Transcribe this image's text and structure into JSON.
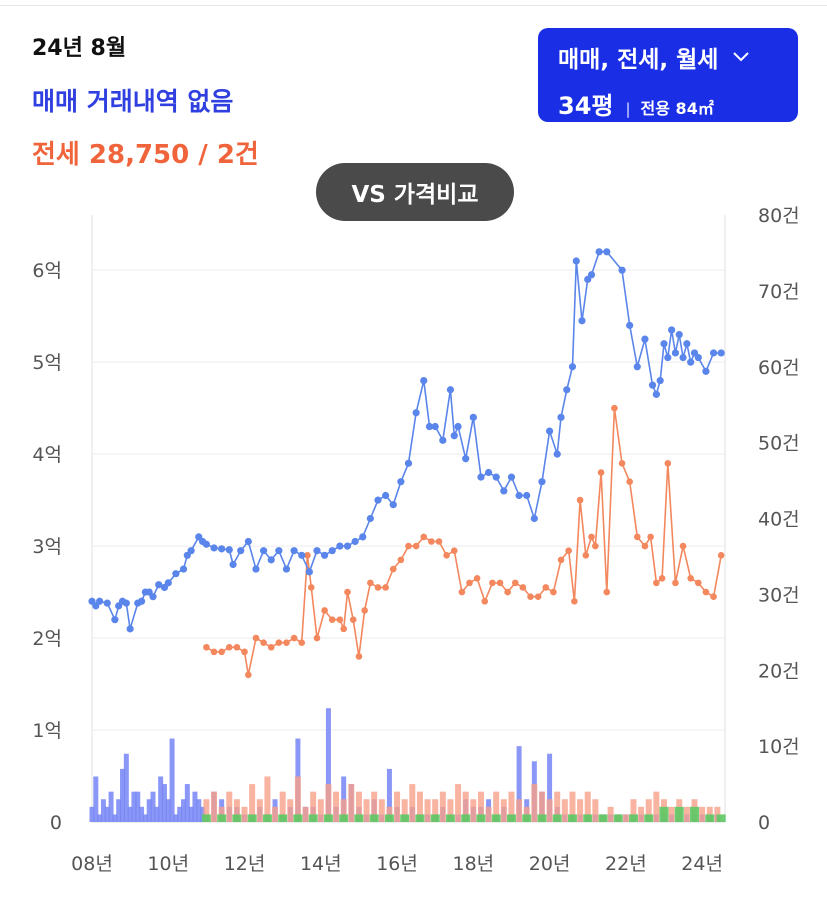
{
  "header": {
    "period": "24년 8월",
    "sale_status": "매매 거래내역 없음",
    "jeonse_summary": "전세 28,750 / 2건"
  },
  "filter": {
    "deal_types": "매매, 전세, 월세",
    "chevron_icon": "chevron-down-icon",
    "pyeong": "34평",
    "separator": "|",
    "exclusive_area": "전용 84㎡"
  },
  "vs_button": {
    "label": "VS 가격비교"
  },
  "colors": {
    "sale": "#5a85ea",
    "jeonse": "#f3875e",
    "sale_volume": "#7585f4",
    "jeonse_volume": "#f7a08a",
    "wolse_volume": "#5dc864",
    "accent": "#1a2ee6"
  },
  "chart_data": {
    "type": "line",
    "x_ticks": [
      "08년",
      "10년",
      "12년",
      "14년",
      "16년",
      "18년",
      "20년",
      "22년",
      "24년"
    ],
    "xlim": [
      2008,
      2024.6
    ],
    "y_left_ticks": [
      "0",
      "1억",
      "2억",
      "3억",
      "4억",
      "5억",
      "6억"
    ],
    "ylim_left": [
      0,
      6.6
    ],
    "y_right_ticks": [
      "0",
      "10건",
      "20건",
      "30건",
      "40건",
      "50건",
      "60건",
      "70건",
      "80건"
    ],
    "ylim_right": [
      0,
      80
    ],
    "grid": true,
    "series": [
      {
        "key": "sale",
        "type": "line",
        "axis": "left",
        "x": [
          2008.0,
          2008.1,
          2008.2,
          2008.4,
          2008.6,
          2008.7,
          2008.8,
          2008.9,
          2009.0,
          2009.2,
          2009.3,
          2009.4,
          2009.5,
          2009.6,
          2009.75,
          2009.9,
          2010.0,
          2010.2,
          2010.4,
          2010.5,
          2010.6,
          2010.8,
          2010.9,
          2011.0,
          2011.2,
          2011.4,
          2011.6,
          2011.7,
          2011.9,
          2012.1,
          2012.3,
          2012.5,
          2012.7,
          2012.9,
          2013.1,
          2013.3,
          2013.5,
          2013.7,
          2013.9,
          2014.1,
          2014.3,
          2014.5,
          2014.7,
          2014.9,
          2015.1,
          2015.3,
          2015.5,
          2015.7,
          2015.9,
          2016.1,
          2016.3,
          2016.5,
          2016.7,
          2016.85,
          2017.0,
          2017.2,
          2017.4,
          2017.5,
          2017.6,
          2017.8,
          2018.0,
          2018.2,
          2018.4,
          2018.6,
          2018.8,
          2019.0,
          2019.2,
          2019.4,
          2019.6,
          2019.8,
          2020.0,
          2020.2,
          2020.3,
          2020.45,
          2020.6,
          2020.7,
          2020.85,
          2021.0,
          2021.1,
          2021.3,
          2021.5,
          2021.9,
          2022.1,
          2022.3,
          2022.5,
          2022.7,
          2022.8,
          2022.9,
          2023.0,
          2023.1,
          2023.2,
          2023.3,
          2023.4,
          2023.5,
          2023.6,
          2023.7,
          2023.8,
          2023.9,
          2024.1,
          2024.3,
          2024.5
        ],
        "y": [
          2.4,
          2.35,
          2.4,
          2.38,
          2.2,
          2.35,
          2.4,
          2.38,
          2.1,
          2.38,
          2.4,
          2.5,
          2.5,
          2.45,
          2.58,
          2.55,
          2.6,
          2.7,
          2.75,
          2.9,
          2.95,
          3.1,
          3.05,
          3.02,
          2.98,
          2.97,
          2.96,
          2.8,
          2.95,
          3.05,
          2.75,
          2.95,
          2.85,
          2.95,
          2.75,
          2.95,
          2.9,
          2.72,
          2.95,
          2.9,
          2.95,
          3.0,
          3.0,
          3.05,
          3.1,
          3.3,
          3.5,
          3.55,
          3.45,
          3.7,
          3.9,
          4.45,
          4.8,
          4.3,
          4.3,
          4.15,
          4.7,
          4.2,
          4.3,
          3.95,
          4.4,
          3.75,
          3.8,
          3.75,
          3.6,
          3.75,
          3.55,
          3.55,
          3.3,
          3.7,
          4.25,
          4.0,
          4.4,
          4.7,
          4.95,
          6.1,
          5.45,
          5.9,
          5.95,
          6.2,
          6.2,
          6.0,
          5.4,
          4.95,
          5.25,
          4.75,
          4.65,
          4.8,
          5.2,
          5.05,
          5.35,
          5.1,
          5.3,
          5.05,
          5.2,
          5.0,
          5.1,
          5.05,
          4.9,
          5.1,
          5.1
        ]
      },
      {
        "key": "jeonse",
        "type": "line",
        "axis": "left",
        "x": [
          2011.0,
          2011.2,
          2011.4,
          2011.6,
          2011.8,
          2012.0,
          2012.1,
          2012.3,
          2012.5,
          2012.7,
          2012.9,
          2013.1,
          2013.3,
          2013.5,
          2013.65,
          2013.75,
          2013.9,
          2014.1,
          2014.3,
          2014.5,
          2014.6,
          2014.7,
          2014.85,
          2015.0,
          2015.15,
          2015.3,
          2015.5,
          2015.7,
          2015.9,
          2016.1,
          2016.3,
          2016.5,
          2016.7,
          2016.9,
          2017.1,
          2017.3,
          2017.5,
          2017.7,
          2017.9,
          2018.1,
          2018.3,
          2018.5,
          2018.7,
          2018.9,
          2019.1,
          2019.3,
          2019.5,
          2019.7,
          2019.9,
          2020.1,
          2020.3,
          2020.5,
          2020.65,
          2020.8,
          2020.95,
          2021.1,
          2021.2,
          2021.35,
          2021.5,
          2021.7,
          2021.9,
          2022.1,
          2022.3,
          2022.5,
          2022.65,
          2022.8,
          2022.95,
          2023.1,
          2023.3,
          2023.5,
          2023.7,
          2023.9,
          2024.1,
          2024.3,
          2024.5
        ],
        "y": [
          1.9,
          1.85,
          1.85,
          1.9,
          1.9,
          1.85,
          1.6,
          2.0,
          1.95,
          1.9,
          1.95,
          1.95,
          2.0,
          1.95,
          2.9,
          2.55,
          2.0,
          2.3,
          2.2,
          2.2,
          2.1,
          2.5,
          2.2,
          1.8,
          2.3,
          2.6,
          2.55,
          2.55,
          2.75,
          2.85,
          3.0,
          3.0,
          3.1,
          3.05,
          3.05,
          2.9,
          2.95,
          2.5,
          2.6,
          2.65,
          2.4,
          2.6,
          2.6,
          2.5,
          2.6,
          2.55,
          2.45,
          2.45,
          2.55,
          2.5,
          2.85,
          2.95,
          2.4,
          3.5,
          2.9,
          3.1,
          3.0,
          3.8,
          2.5,
          4.5,
          3.9,
          3.7,
          3.1,
          3.0,
          3.1,
          2.6,
          2.65,
          3.9,
          2.6,
          3.0,
          2.65,
          2.6,
          2.5,
          2.45,
          2.9
        ]
      },
      {
        "key": "sale_volume",
        "type": "bar",
        "axis": "right",
        "x": [
          2008.0,
          2008.1,
          2008.2,
          2008.3,
          2008.4,
          2008.5,
          2008.6,
          2008.7,
          2008.8,
          2008.9,
          2009.0,
          2009.1,
          2009.2,
          2009.3,
          2009.4,
          2009.5,
          2009.6,
          2009.7,
          2009.8,
          2009.9,
          2010.0,
          2010.1,
          2010.2,
          2010.3,
          2010.4,
          2010.5,
          2010.6,
          2010.7,
          2010.8,
          2010.9,
          2011.0,
          2011.2,
          2011.4,
          2011.6,
          2011.8,
          2012.0,
          2012.2,
          2012.4,
          2012.6,
          2012.8,
          2013.0,
          2013.2,
          2013.4,
          2013.6,
          2013.8,
          2014.0,
          2014.2,
          2014.4,
          2014.6,
          2014.8,
          2015.0,
          2015.2,
          2015.4,
          2015.6,
          2015.8,
          2016.0,
          2016.2,
          2016.4,
          2016.6,
          2016.8,
          2017.0,
          2017.2,
          2017.4,
          2017.6,
          2017.8,
          2018.0,
          2018.2,
          2018.4,
          2018.6,
          2018.8,
          2019.0,
          2019.2,
          2019.4,
          2019.6,
          2019.8,
          2020.0,
          2020.2,
          2020.4,
          2020.6,
          2020.8,
          2021.0,
          2021.2,
          2021.4,
          2021.6,
          2021.8,
          2022.0,
          2022.2,
          2022.4,
          2022.6,
          2022.8,
          2023.0,
          2023.2,
          2023.4,
          2023.6,
          2023.8,
          2024.0,
          2024.2,
          2024.4
        ],
        "values": [
          2,
          6,
          1,
          3,
          2,
          4,
          1,
          3,
          7,
          9,
          2,
          4,
          4,
          2,
          1,
          3,
          4,
          2,
          6,
          5,
          3,
          11,
          1,
          2,
          3,
          5,
          2,
          4,
          3,
          2,
          1,
          4,
          3,
          2,
          2,
          1,
          1,
          2,
          1,
          3,
          1,
          2,
          11,
          2,
          2,
          1,
          15,
          2,
          6,
          5,
          2,
          1,
          3,
          1,
          7,
          2,
          1,
          2,
          1,
          1,
          1,
          2,
          1,
          1,
          3,
          2,
          2,
          3,
          1,
          2,
          1,
          10,
          3,
          8,
          4,
          9,
          2,
          1,
          1,
          1,
          1,
          1,
          1,
          1,
          1,
          1,
          1,
          1,
          1,
          1,
          1,
          1,
          1,
          1,
          1,
          1,
          1,
          1
        ]
      },
      {
        "key": "jeonse_volume",
        "type": "bar",
        "axis": "right",
        "x": [
          2011.0,
          2011.2,
          2011.4,
          2011.6,
          2011.8,
          2012.0,
          2012.2,
          2012.4,
          2012.6,
          2012.8,
          2013.0,
          2013.2,
          2013.4,
          2013.6,
          2013.8,
          2014.0,
          2014.2,
          2014.4,
          2014.6,
          2014.8,
          2015.0,
          2015.2,
          2015.4,
          2015.6,
          2015.8,
          2016.0,
          2016.2,
          2016.4,
          2016.6,
          2016.8,
          2017.0,
          2017.2,
          2017.4,
          2017.6,
          2017.8,
          2018.0,
          2018.2,
          2018.4,
          2018.6,
          2018.8,
          2019.0,
          2019.2,
          2019.4,
          2019.6,
          2019.8,
          2020.0,
          2020.2,
          2020.4,
          2020.6,
          2020.8,
          2021.0,
          2021.2,
          2021.4,
          2021.6,
          2021.8,
          2022.0,
          2022.2,
          2022.4,
          2022.6,
          2022.8,
          2023.0,
          2023.2,
          2023.4,
          2023.6,
          2023.8,
          2024.0,
          2024.2,
          2024.4
        ],
        "values": [
          3,
          4,
          2,
          4,
          3,
          2,
          5,
          3,
          6,
          2,
          4,
          3,
          6,
          2,
          4,
          3,
          5,
          4,
          3,
          5,
          4,
          3,
          4,
          3,
          2,
          4,
          3,
          5,
          4,
          3,
          3,
          4,
          3,
          5,
          4,
          3,
          4,
          2,
          4,
          3,
          4,
          3,
          2,
          5,
          4,
          3,
          4,
          3,
          4,
          3,
          4,
          3,
          1,
          2,
          1,
          1,
          3,
          2,
          3,
          4,
          3,
          2,
          3,
          2,
          3,
          2,
          2,
          2
        ]
      },
      {
        "key": "wolse_volume",
        "type": "bar",
        "axis": "right",
        "x": [
          2011.0,
          2011.4,
          2011.8,
          2012.2,
          2012.6,
          2013.0,
          2013.4,
          2013.8,
          2014.2,
          2014.6,
          2015.0,
          2015.4,
          2015.8,
          2016.2,
          2016.6,
          2017.0,
          2017.4,
          2017.8,
          2018.2,
          2018.6,
          2019.0,
          2019.4,
          2019.8,
          2020.2,
          2020.6,
          2021.0,
          2021.4,
          2021.8,
          2022.2,
          2022.6,
          2023.0,
          2023.4,
          2023.8,
          2024.2,
          2024.5
        ],
        "values": [
          1,
          1,
          1,
          1,
          1,
          1,
          1,
          1,
          1,
          1,
          1,
          1,
          1,
          1,
          1,
          1,
          1,
          1,
          1,
          1,
          1,
          1,
          1,
          1,
          1,
          1,
          1,
          1,
          1,
          1,
          2,
          2,
          2,
          1,
          1
        ]
      }
    ]
  }
}
